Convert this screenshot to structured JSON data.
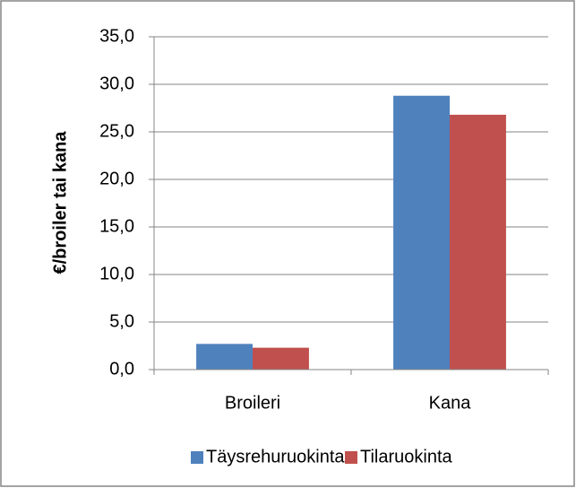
{
  "chart_data": {
    "type": "bar",
    "y_label": "€/broiler tai kana",
    "categories": [
      "Broileri",
      "Kana"
    ],
    "series": [
      {
        "name": "Täysrehuruokinta",
        "color": "#4f81bd",
        "values": [
          2.7,
          28.8
        ]
      },
      {
        "name": "Tilaruokinta",
        "color": "#c0504d",
        "values": [
          2.3,
          26.8
        ]
      }
    ],
    "ylim": [
      0,
      35
    ],
    "yticks": [
      {
        "value": 0,
        "label": "0,0"
      },
      {
        "value": 5,
        "label": "5,0"
      },
      {
        "value": 10,
        "label": "10,0"
      },
      {
        "value": 15,
        "label": "15,0"
      },
      {
        "value": 20,
        "label": "20,0"
      },
      {
        "value": 25,
        "label": "25,0"
      },
      {
        "value": 30,
        "label": "30,0"
      },
      {
        "value": 35,
        "label": "35,0"
      }
    ],
    "grid": true,
    "legend": "bottom"
  }
}
